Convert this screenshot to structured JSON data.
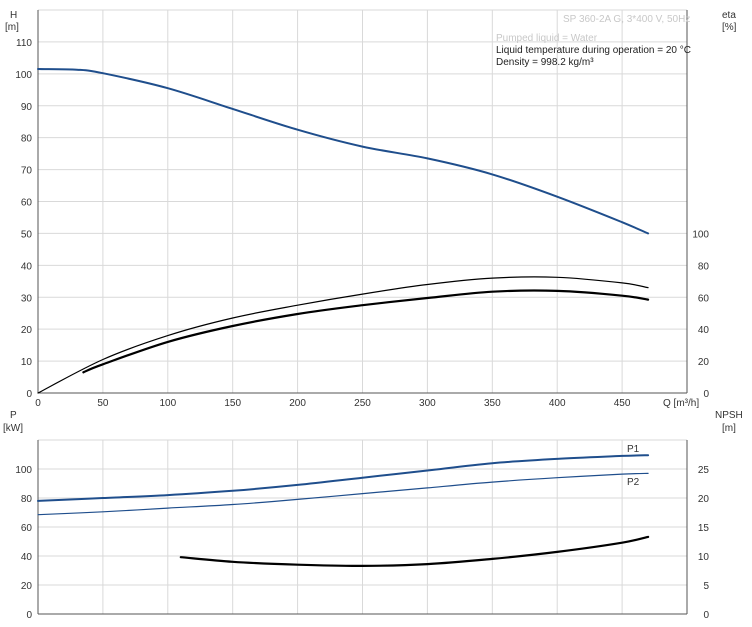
{
  "header": {
    "title": "SP 360-2A G, 3*400 V, 50Hz",
    "h_label": "H",
    "h_unit": "[m]",
    "eta_label": "eta",
    "eta_unit": "[%]",
    "info_lines": [
      "Pumped liquid = Water",
      "Liquid temperature during operation = 20 °C",
      "Density = 998.2 kg/m³"
    ]
  },
  "bottom": {
    "p_label": "P",
    "p_unit": "[kW]",
    "npsh_label": "NPSH",
    "npsh_unit": "[m]",
    "q_label": "Q [m³/h]"
  },
  "colors": {
    "head_curve": "#1f4e8c",
    "efficiency_curve": "#000000",
    "power_curve": "#1f4e8c",
    "npsh_curve": "#000000",
    "grid": "#d9d9d9"
  },
  "chart_data": [
    {
      "type": "line",
      "panel": "top",
      "xlabel": "Q [m³/h]",
      "ylabel": "H [m]",
      "y2label": "eta [%]",
      "xlim": [
        0,
        500
      ],
      "ylim": [
        0,
        120
      ],
      "y2lim": [
        0,
        240
      ],
      "x_ticks": [
        0,
        50,
        100,
        150,
        200,
        250,
        300,
        350,
        400,
        450
      ],
      "y_ticks": [
        0,
        10,
        20,
        30,
        40,
        50,
        60,
        70,
        80,
        90,
        100,
        110
      ],
      "y2_ticks": [
        0,
        20,
        40,
        60,
        80,
        100
      ],
      "grid": true,
      "series": [
        {
          "axis": "y",
          "color": "#1f4e8c",
          "width": 2,
          "x": [
            0,
            30,
            50,
            100,
            150,
            200,
            250,
            300,
            350,
            400,
            450,
            470
          ],
          "y": [
            101.5,
            101.3,
            100.2,
            95.5,
            89,
            82.5,
            77.2,
            73.5,
            68.5,
            61.5,
            53.5,
            50
          ]
        },
        {
          "axis": "y2",
          "color": "#000000",
          "width": 1.2,
          "x": [
            0,
            50,
            100,
            150,
            200,
            250,
            300,
            350,
            400,
            450,
            470
          ],
          "y": [
            0,
            21,
            36,
            47,
            55,
            62,
            68,
            72,
            72.5,
            69,
            66
          ]
        },
        {
          "axis": "y2",
          "color": "#000000",
          "width": 2.2,
          "x": [
            35,
            50,
            100,
            150,
            200,
            250,
            300,
            350,
            400,
            450,
            470
          ],
          "y": [
            13,
            18,
            32,
            42,
            49.5,
            55,
            59.5,
            63.5,
            64,
            61,
            58.5
          ]
        }
      ]
    },
    {
      "type": "line",
      "panel": "bottom",
      "xlabel": "Q [m³/h]",
      "ylabel": "P [kW]",
      "y2label": "NPSH [m]",
      "xlim": [
        0,
        500
      ],
      "ylim": [
        0,
        120
      ],
      "y2lim": [
        0,
        30
      ],
      "y_ticks": [
        0,
        20,
        40,
        60,
        80,
        100
      ],
      "y2_ticks": [
        0,
        5,
        10,
        15,
        20,
        25
      ],
      "grid": true,
      "series": [
        {
          "name": "P1",
          "axis": "y",
          "color": "#1f4e8c",
          "width": 2,
          "x": [
            0,
            50,
            100,
            150,
            200,
            250,
            300,
            350,
            400,
            450,
            470
          ],
          "y": [
            78,
            80,
            82,
            85,
            89,
            94,
            99,
            104,
            107,
            109,
            109.5
          ]
        },
        {
          "name": "P2",
          "axis": "y",
          "color": "#1f4e8c",
          "width": 1.2,
          "x": [
            0,
            50,
            100,
            150,
            200,
            250,
            300,
            350,
            400,
            450,
            470
          ],
          "y": [
            68.5,
            70.5,
            73,
            75.5,
            79,
            83,
            87,
            91,
            94,
            96.5,
            97
          ]
        },
        {
          "axis": "y2",
          "color": "#000000",
          "width": 2.2,
          "x": [
            110,
            150,
            200,
            250,
            300,
            350,
            400,
            450,
            470
          ],
          "y": [
            9.8,
            9,
            8.5,
            8.3,
            8.6,
            9.5,
            10.7,
            12.3,
            13.3
          ]
        }
      ]
    }
  ]
}
